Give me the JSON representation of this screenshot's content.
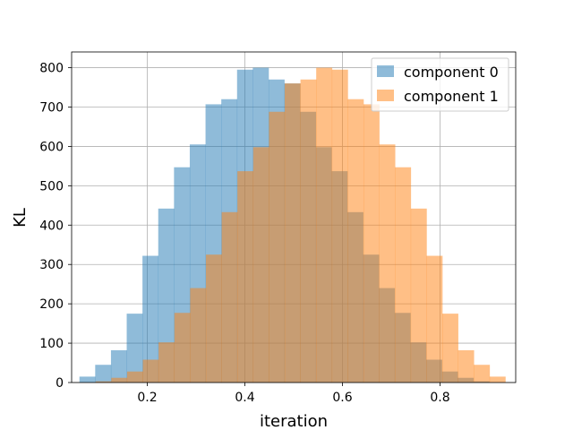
{
  "chart_data": {
    "type": "bar",
    "xlabel": "iteration",
    "ylabel": "KL",
    "xlim": [
      0.045,
      0.955
    ],
    "ylim": [
      0,
      840
    ],
    "xticks": [
      0.2,
      0.4,
      0.6,
      0.8
    ],
    "xtick_labels": [
      "0.2",
      "0.4",
      "0.6",
      "0.8"
    ],
    "yticks": [
      0,
      100,
      200,
      300,
      400,
      500,
      600,
      700,
      800
    ],
    "ytick_labels": [
      "0",
      "100",
      "200",
      "300",
      "400",
      "500",
      "600",
      "700",
      "800"
    ],
    "grid": true,
    "legend": "top-right",
    "series": [
      {
        "name": "component 0",
        "color": "#1f77b4",
        "opacity": 0.5,
        "bin_width": 0.0323,
        "bin_start": 0.061,
        "values": [
          15,
          45,
          82,
          175,
          322,
          442,
          547,
          605,
          707,
          720,
          795,
          800,
          770,
          760,
          688,
          598,
          537,
          433,
          325,
          240,
          177,
          102,
          58,
          28,
          12,
          3
        ]
      },
      {
        "name": "component 1",
        "color": "#ff7f0e",
        "opacity": 0.5,
        "bin_width": 0.0323,
        "bin_start": 0.094,
        "values": [
          3,
          12,
          28,
          58,
          102,
          177,
          240,
          325,
          433,
          537,
          598,
          688,
          760,
          770,
          800,
          795,
          720,
          707,
          605,
          547,
          442,
          322,
          175,
          82,
          45,
          15
        ]
      }
    ]
  }
}
